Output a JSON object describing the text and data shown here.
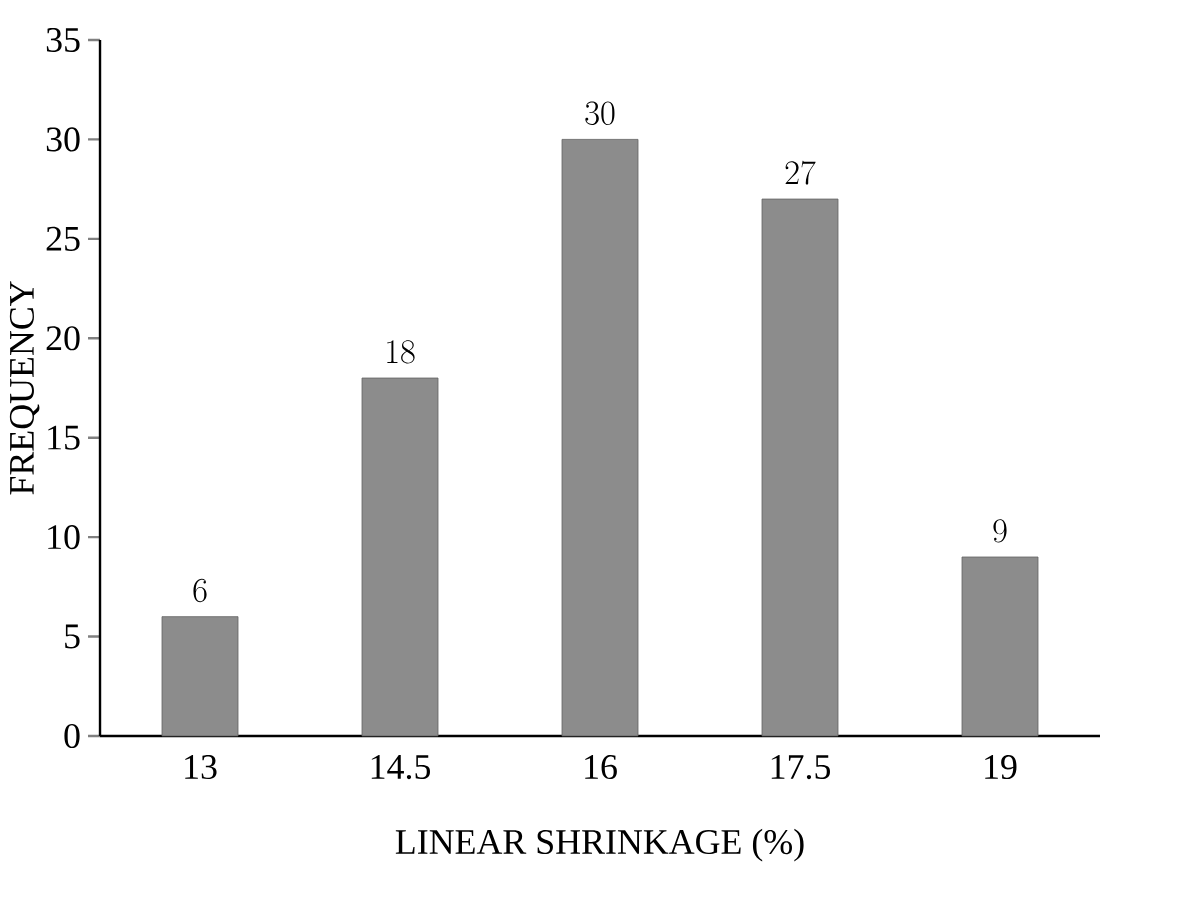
{
  "chart_data": {
    "type": "bar",
    "xlabel": "LINEAR SHRINKAGE (%)",
    "ylabel": "FREQUENCY",
    "categories": [
      "13",
      "14.5",
      "16",
      "17.5",
      "19"
    ],
    "values": [
      6,
      18,
      30,
      27,
      9
    ],
    "color": "#8c8c8c",
    "ylim": [
      0,
      35
    ],
    "yticks": [
      0,
      5,
      10,
      15,
      20,
      25,
      30,
      35
    ],
    "data_labels": true,
    "grid": false
  }
}
